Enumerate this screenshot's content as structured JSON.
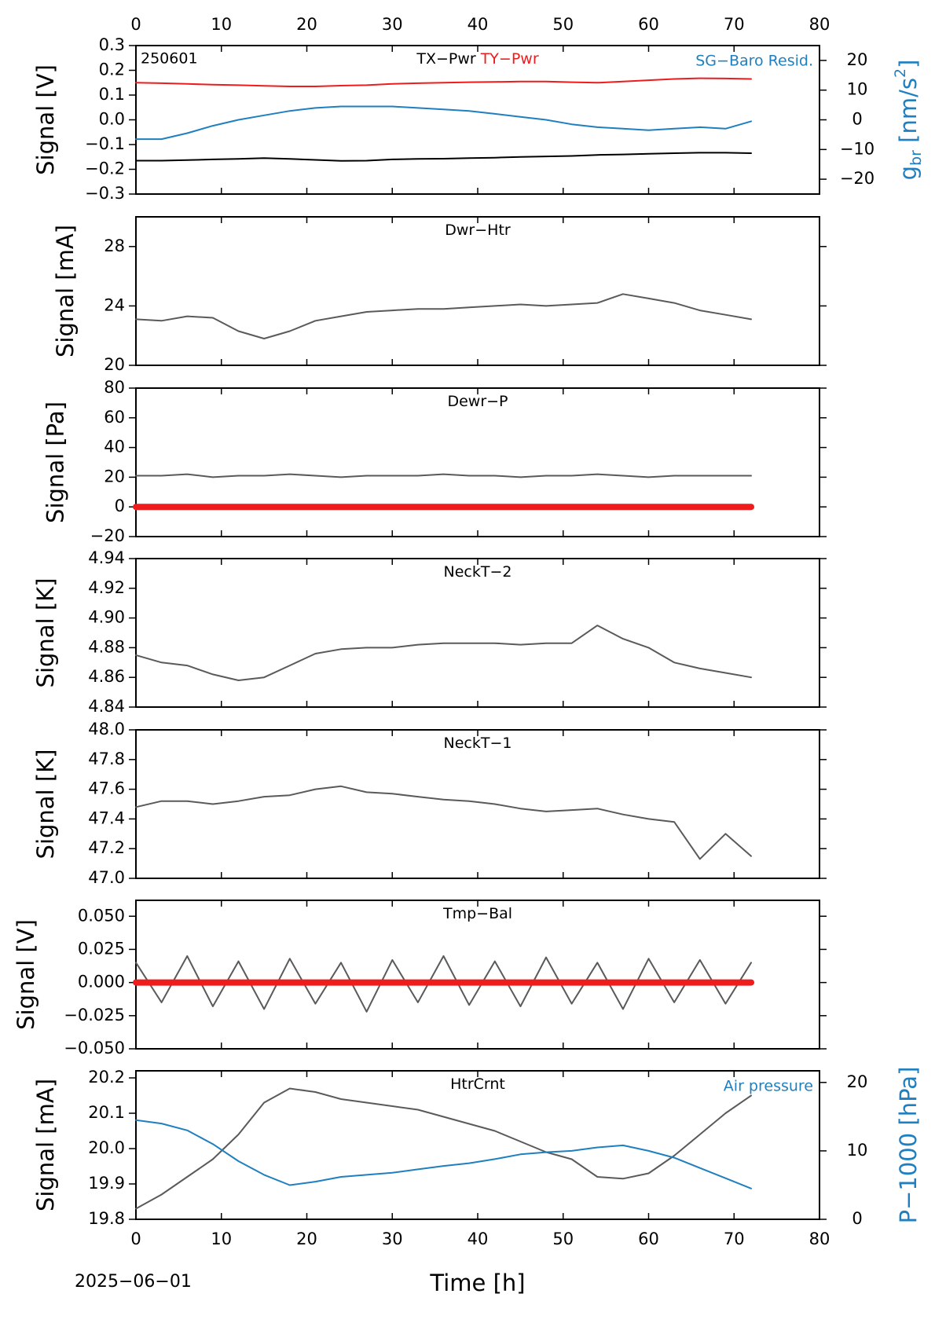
{
  "chart_data": [
    {
      "type": "line",
      "annotation": "250601",
      "xlim": [
        0,
        80
      ],
      "xticks": [
        0,
        10,
        20,
        30,
        40,
        50,
        60,
        70,
        80
      ],
      "xaxis_labels": "top",
      "ylabel": "Signal [V]",
      "ylim": [
        -0.3,
        0.3
      ],
      "yticks": [
        {
          "value": -0.3,
          "label": "−0.3"
        },
        {
          "value": -0.2,
          "label": "−0.2"
        },
        {
          "value": -0.1,
          "label": "−0.1"
        },
        {
          "value": 0,
          "label": "0.0"
        },
        0.1,
        0.2,
        0.3
      ],
      "y2lim": [
        -25,
        25
      ],
      "y2ticks": [
        {
          "value": -20,
          "label": "−20"
        },
        {
          "value": -10,
          "label": "−10"
        },
        0,
        10,
        20
      ],
      "y2label": [
        {
          "text": "g"
        },
        {
          "text": "br",
          "script": "sub"
        },
        {
          "text": " [nm/s"
        },
        {
          "text": "2",
          "script": "sup"
        },
        {
          "text": "]"
        }
      ],
      "x": [
        0,
        3,
        6,
        9,
        12,
        15,
        18,
        21,
        24,
        27,
        30,
        33,
        36,
        39,
        42,
        45,
        48,
        51,
        54,
        57,
        60,
        63,
        66,
        69,
        72
      ],
      "series": [
        {
          "name": "TX−Pwr",
          "color": "#000000",
          "values": [
            -0.165,
            -0.165,
            -0.163,
            -0.16,
            -0.158,
            -0.155,
            -0.158,
            -0.162,
            -0.166,
            -0.165,
            -0.16,
            -0.158,
            -0.157,
            -0.155,
            -0.153,
            -0.15,
            -0.148,
            -0.146,
            -0.142,
            -0.14,
            -0.137,
            -0.135,
            -0.133,
            -0.133,
            -0.135
          ]
        },
        {
          "name": "TY−Pwr",
          "color": "#ee1c1c",
          "values": [
            0.15,
            0.148,
            0.145,
            0.142,
            0.14,
            0.137,
            0.135,
            0.135,
            0.138,
            0.14,
            0.145,
            0.148,
            0.15,
            0.152,
            0.153,
            0.155,
            0.155,
            0.152,
            0.15,
            0.155,
            0.16,
            0.165,
            0.168,
            0.167,
            0.165
          ]
        },
        {
          "name": "SG−Baro Resid.",
          "color": "#1f7fbf",
          "axis": "y2",
          "values": [
            -6.5,
            -6.5,
            -4.5,
            -2,
            0,
            1.5,
            3,
            4,
            4.5,
            4.5,
            4.5,
            4,
            3.5,
            3,
            2,
            1,
            0,
            -1.5,
            -2.5,
            -3,
            -3.5,
            -3,
            -2.5,
            -3,
            -0.5
          ]
        }
      ]
    },
    {
      "type": "line",
      "title": "Dwr−Htr",
      "xlim": [
        0,
        80
      ],
      "xticks": [
        0,
        10,
        20,
        30,
        40,
        50,
        60,
        70,
        80
      ],
      "ylabel": "Signal [mA]",
      "ylim": [
        20,
        30
      ],
      "yticks": [
        20,
        24,
        28
      ],
      "x": [
        0,
        3,
        6,
        9,
        12,
        15,
        18,
        21,
        24,
        27,
        30,
        33,
        36,
        39,
        42,
        45,
        48,
        51,
        54,
        57,
        60,
        63,
        66,
        69,
        72
      ],
      "series": [
        {
          "color": "#5a5a5a",
          "values": [
            23.1,
            23.0,
            23.3,
            23.2,
            22.3,
            21.8,
            22.3,
            23.0,
            23.3,
            23.6,
            23.7,
            23.8,
            23.8,
            23.9,
            24.0,
            24.1,
            24.0,
            24.1,
            24.2,
            24.8,
            24.5,
            24.2,
            23.7,
            23.4,
            23.1
          ]
        }
      ]
    },
    {
      "type": "line",
      "title": "Dewr−P",
      "xlim": [
        0,
        80
      ],
      "xticks": [
        0,
        10,
        20,
        30,
        40,
        50,
        60,
        70,
        80
      ],
      "ylabel": "Signal [Pa]",
      "ylim": [
        -20,
        80
      ],
      "yticks": [
        {
          "value": -20,
          "label": "−20"
        },
        0,
        20,
        40,
        60,
        80
      ],
      "x": [
        0,
        3,
        6,
        9,
        12,
        15,
        18,
        21,
        24,
        27,
        30,
        33,
        36,
        39,
        42,
        45,
        48,
        51,
        54,
        57,
        60,
        63,
        66,
        69,
        72
      ],
      "series": [
        {
          "color": "#5a5a5a",
          "values": [
            21,
            21,
            22,
            20,
            21,
            21,
            22,
            21,
            20,
            21,
            21,
            21,
            22,
            21,
            21,
            20,
            21,
            21,
            22,
            21,
            20,
            21,
            21,
            21,
            21
          ]
        },
        {
          "color": "#ee1c1c",
          "linewidth": 8,
          "values": [
            0,
            0,
            0,
            0,
            0,
            0,
            0,
            0,
            0,
            0,
            0,
            0,
            0,
            0,
            0,
            0,
            0,
            0,
            0,
            0,
            0,
            0,
            0,
            0,
            0
          ]
        }
      ]
    },
    {
      "type": "line",
      "title": "NeckT−2",
      "xlim": [
        0,
        80
      ],
      "xticks": [
        0,
        10,
        20,
        30,
        40,
        50,
        60,
        70,
        80
      ],
      "ylabel": "Signal [K]",
      "ylim": [
        4.84,
        4.94
      ],
      "yticks": [
        4.84,
        4.86,
        4.88,
        {
          "value": 4.9,
          "label": "4.90"
        },
        4.92,
        4.94
      ],
      "x": [
        0,
        3,
        6,
        9,
        12,
        15,
        18,
        21,
        24,
        27,
        30,
        33,
        36,
        39,
        42,
        45,
        48,
        51,
        54,
        57,
        60,
        63,
        66,
        69,
        72
      ],
      "series": [
        {
          "color": "#5a5a5a",
          "values": [
            4.875,
            4.87,
            4.868,
            4.862,
            4.858,
            4.86,
            4.868,
            4.876,
            4.879,
            4.88,
            4.88,
            4.882,
            4.883,
            4.883,
            4.883,
            4.882,
            4.883,
            4.883,
            4.895,
            4.886,
            4.88,
            4.87,
            4.866,
            4.863,
            4.86
          ]
        }
      ]
    },
    {
      "type": "line",
      "title": "NeckT−1",
      "xlim": [
        0,
        80
      ],
      "xticks": [
        0,
        10,
        20,
        30,
        40,
        50,
        60,
        70,
        80
      ],
      "ylabel": "Signal [K]",
      "ylim": [
        47,
        48
      ],
      "yticks": [
        {
          "value": 47,
          "label": "47.0"
        },
        47.2,
        47.4,
        47.6,
        47.8,
        {
          "value": 48,
          "label": "48.0"
        }
      ],
      "x": [
        0,
        3,
        6,
        9,
        12,
        15,
        18,
        21,
        24,
        27,
        30,
        33,
        36,
        39,
        42,
        45,
        48,
        51,
        54,
        57,
        60,
        63,
        66,
        69,
        72
      ],
      "series": [
        {
          "color": "#5a5a5a",
          "values": [
            47.48,
            47.52,
            47.52,
            47.5,
            47.52,
            47.55,
            47.56,
            47.6,
            47.62,
            47.58,
            47.57,
            47.55,
            47.53,
            47.52,
            47.5,
            47.47,
            47.45,
            47.46,
            47.47,
            47.43,
            47.4,
            47.38,
            47.13,
            47.3,
            47.15
          ]
        }
      ]
    },
    {
      "type": "line",
      "title": "Tmp−Bal",
      "xlim": [
        0,
        80
      ],
      "xticks": [
        0,
        10,
        20,
        30,
        40,
        50,
        60,
        70,
        80
      ],
      "ylabel": "Signal [V]",
      "ylim": [
        -0.05,
        0.062
      ],
      "yticks": [
        {
          "value": -0.05,
          "label": "−0.050"
        },
        {
          "value": -0.025,
          "label": "−0.025"
        },
        {
          "value": 0,
          "label": "0.000"
        },
        {
          "value": 0.025,
          "label": "0.025"
        },
        {
          "value": 0.05,
          "label": "0.050"
        }
      ],
      "x": [
        0,
        3,
        6,
        9,
        12,
        15,
        18,
        21,
        24,
        27,
        30,
        33,
        36,
        39,
        42,
        45,
        48,
        51,
        54,
        57,
        60,
        63,
        66,
        69,
        72
      ],
      "series": [
        {
          "color": "#5a5a5a",
          "values": [
            0.015,
            -0.015,
            0.02,
            -0.018,
            0.016,
            -0.02,
            0.018,
            -0.016,
            0.015,
            -0.022,
            0.017,
            -0.015,
            0.02,
            -0.017,
            0.016,
            -0.018,
            0.019,
            -0.016,
            0.015,
            -0.02,
            0.018,
            -0.015,
            0.017,
            -0.016,
            0.015
          ]
        },
        {
          "color": "#ee1c1c",
          "linewidth": 8,
          "values": [
            0,
            0,
            0,
            0,
            0,
            0,
            0,
            0,
            0,
            0,
            0,
            0,
            0,
            0,
            0,
            0,
            0,
            0,
            0,
            0,
            0,
            0,
            0,
            0,
            0
          ]
        }
      ]
    },
    {
      "type": "line",
      "title": "HtrCrnt",
      "xlim": [
        0,
        80
      ],
      "xticks": [
        0,
        10,
        20,
        30,
        40,
        50,
        60,
        70,
        80
      ],
      "xaxis_labels": "bottom",
      "xlabel": "Time [h]",
      "date_label": "2025−06−01",
      "ylabel": "Signal [mA]",
      "ylim": [
        19.8,
        20.22
      ],
      "yticks": [
        19.8,
        19.9,
        {
          "value": 20,
          "label": "20.0"
        },
        20.1,
        20.2
      ],
      "y2lim": [
        0,
        21.7
      ],
      "y2ticks": [
        0,
        10,
        20
      ],
      "y2label": [
        {
          "text": "P−1000 [hPa]"
        }
      ],
      "x": [
        0,
        3,
        6,
        9,
        12,
        15,
        18,
        21,
        24,
        27,
        30,
        33,
        36,
        39,
        42,
        45,
        48,
        51,
        54,
        57,
        60,
        63,
        66,
        69,
        72
      ],
      "series": [
        {
          "color": "#5a5a5a",
          "values": [
            19.83,
            19.87,
            19.92,
            19.97,
            20.04,
            20.13,
            20.17,
            20.16,
            20.14,
            20.13,
            20.12,
            20.11,
            20.09,
            20.07,
            20.05,
            20.02,
            19.99,
            19.97,
            19.92,
            19.915,
            19.93,
            19.98,
            20.04,
            20.1,
            20.15
          ]
        },
        {
          "name": "Air pressure",
          "color": "#1f7fbf",
          "axis": "y2",
          "values": [
            14.5,
            14,
            13,
            11,
            8.5,
            6.5,
            5,
            5.5,
            6.2,
            6.5,
            6.8,
            7.3,
            7.8,
            8.2,
            8.8,
            9.5,
            9.8,
            10,
            10.5,
            10.8,
            10,
            9,
            7.5,
            6,
            4.5
          ]
        }
      ]
    }
  ]
}
